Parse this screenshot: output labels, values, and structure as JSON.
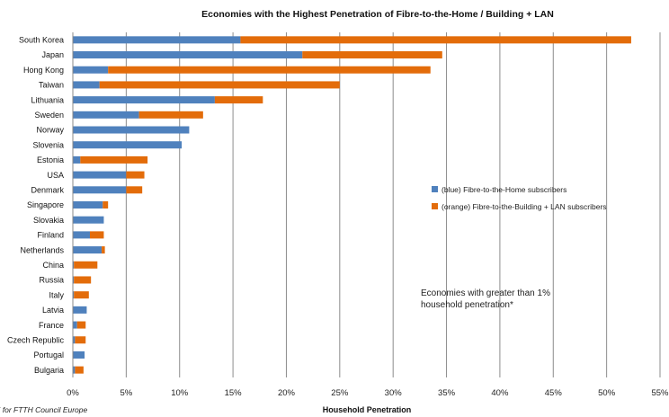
{
  "chart_data": {
    "type": "bar",
    "orientation": "horizontal",
    "stacked": true,
    "title": "Economies with the Highest Penetration of  Fibre-to-the-Home / Building  + LAN",
    "xlabel": "Household Penetration",
    "ylabel": "",
    "xlim": [
      0,
      55
    ],
    "x_ticks": [
      "0%",
      "5%",
      "10%",
      "15%",
      "20%",
      "25%",
      "30%",
      "35%",
      "40%",
      "45%",
      "50%",
      "55%"
    ],
    "grid": "vertical",
    "legend_position": "right-middle",
    "categories": [
      "South Korea",
      "Japan",
      "Hong Kong",
      "Taiwan",
      "Lithuania",
      "Sweden",
      "Norway",
      "Slovenia",
      "Estonia",
      "USA",
      "Denmark",
      "Singapore",
      "Slovakia",
      "Finland",
      "Netherlands",
      "China",
      "Russia",
      "Italy",
      "Latvia",
      "France",
      "Czech Republic",
      "Portugal",
      "Bulgaria"
    ],
    "series": [
      {
        "name": "(blue) Fibre-to-the-Home subscribers",
        "color": "#4f81bd",
        "values": [
          15.7,
          21.5,
          3.3,
          2.5,
          13.3,
          6.2,
          10.9,
          10.2,
          0.7,
          5.0,
          5.0,
          2.8,
          2.9,
          1.6,
          2.7,
          0.1,
          0.1,
          0.1,
          1.3,
          0.4,
          0.2,
          1.1,
          0.2
        ]
      },
      {
        "name": "(orange) Fibre-to-the-Building + LAN subscribers",
        "color": "#e36c0a",
        "values": [
          36.6,
          13.1,
          30.2,
          22.5,
          4.5,
          6.0,
          0.0,
          0.0,
          6.3,
          1.7,
          1.5,
          0.5,
          0.0,
          1.3,
          0.3,
          2.2,
          1.6,
          1.4,
          0.0,
          0.8,
          1.0,
          0.0,
          0.8
        ]
      }
    ],
    "annotation": [
      "Economies with greater than 1%",
      "household penetration*"
    ],
    "source": "IDATE for FTTH Council Europe"
  }
}
